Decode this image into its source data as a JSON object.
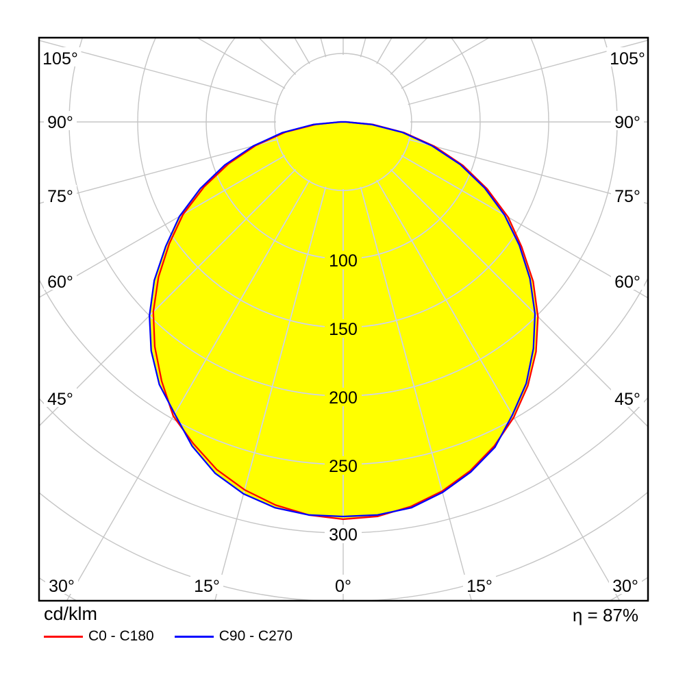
{
  "chart_data": {
    "type": "polar_intensity_distribution",
    "title": "",
    "units": "cd/klm",
    "efficiency": "η = 87%",
    "gamma_angles_deg": [
      -90,
      -85,
      -80,
      -75,
      -70,
      -65,
      -60,
      -55,
      -50,
      -45,
      -40,
      -35,
      -30,
      -25,
      -20,
      -15,
      -10,
      -5,
      0,
      5,
      10,
      15,
      20,
      25,
      30,
      35,
      40,
      45,
      50,
      55,
      60,
      65,
      70,
      75,
      80,
      85,
      90
    ],
    "series": [
      {
        "name": "C0 - C180",
        "color": "#ff0000",
        "values": [
          2,
          20,
          43,
          66,
          89,
          112,
          135,
          155,
          176,
          196,
          214,
          231,
          248,
          259,
          270,
          278,
          284,
          288,
          290,
          289,
          285,
          279,
          271,
          261,
          249,
          235,
          219,
          201,
          181,
          159,
          139,
          116,
          93,
          69,
          45,
          22,
          2
        ]
      },
      {
        "name": "C90 - C270",
        "color": "#0000ff",
        "values": [
          2,
          22,
          45,
          68,
          92,
          115,
          138,
          158,
          180,
          200,
          218,
          234,
          246,
          261,
          273,
          281,
          286,
          288,
          288,
          288,
          286,
          280,
          272,
          262,
          247,
          233,
          216,
          198,
          178,
          157,
          136,
          114,
          91,
          67,
          44,
          21,
          2
        ]
      }
    ],
    "radial_tick_labels": [
      100,
      150,
      200,
      250,
      300
    ],
    "radial_circle_values": [
      50,
      100,
      150,
      200,
      250,
      300,
      350,
      400
    ],
    "spoke_step_deg": 15,
    "angle_labels_left": [
      "105°",
      "90°",
      "75°",
      "60°",
      "45°"
    ],
    "angle_labels_right": [
      "105°",
      "90°",
      "75°",
      "60°",
      "45°"
    ],
    "angle_labels_bottom": [
      "30°",
      "15°",
      "0°",
      "15°",
      "30°"
    ],
    "grid_on": true,
    "colors": {
      "fill": "#ffff00",
      "grid": "#c5c5c5",
      "grid_inside_fill": "#ccd2ee",
      "frame": "#000000",
      "text": "#000000"
    }
  },
  "footer": {
    "units_label": "cd/klm",
    "efficiency_label": "η = 87%"
  },
  "legend": {
    "items": [
      {
        "label": "C0 - C180",
        "color": "#ff0000"
      },
      {
        "label": "C90 - C270",
        "color": "#0000ff"
      }
    ]
  }
}
